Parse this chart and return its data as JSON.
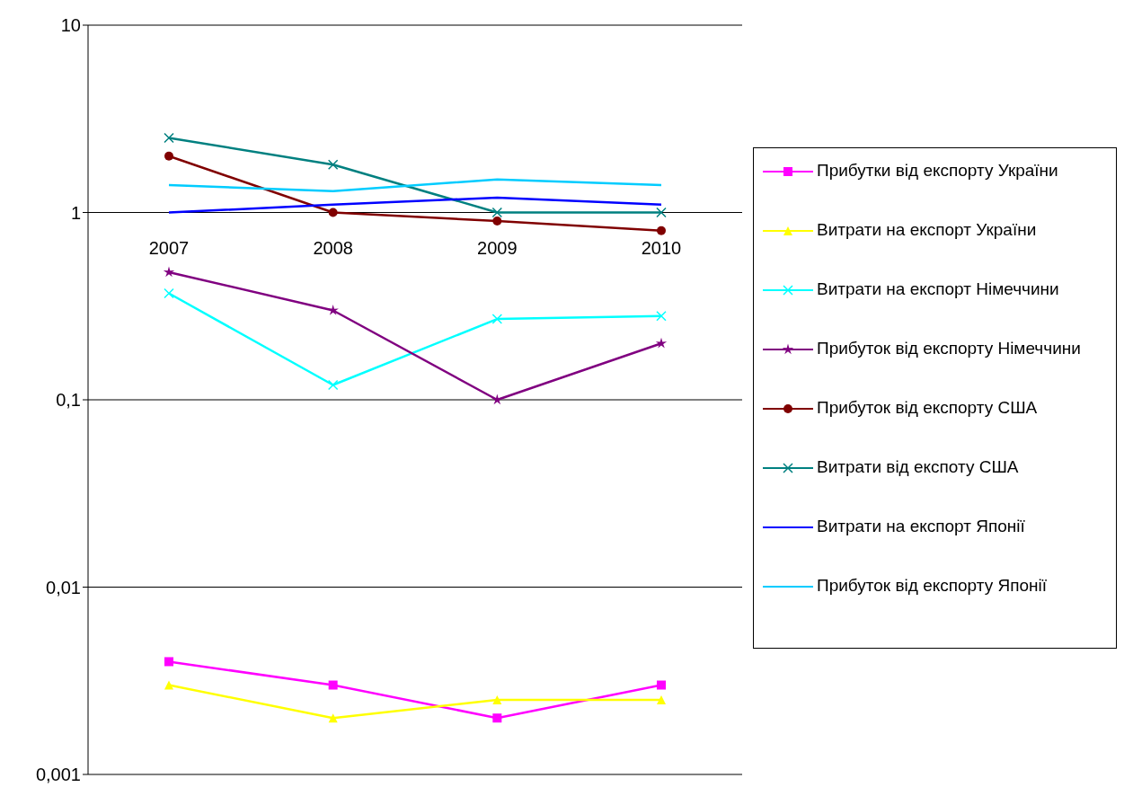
{
  "chart_data": {
    "type": "line",
    "categories": [
      "2007",
      "2008",
      "2009",
      "2010"
    ],
    "series": [
      {
        "name": "Прибутки від експорту України",
        "color": "#ff00ff",
        "marker": "square",
        "values": [
          0.004,
          0.003,
          0.002,
          0.003
        ]
      },
      {
        "name": "Витрати на експорт України",
        "color": "#ffff00",
        "marker": "triangle",
        "values": [
          0.003,
          0.002,
          0.0025,
          0.0025
        ]
      },
      {
        "name": "Витрати на експорт Німеччини",
        "color": "#00ffff",
        "marker": "cross",
        "values": [
          0.37,
          0.12,
          0.27,
          0.28
        ]
      },
      {
        "name": "Прибуток від експорту Німеччини",
        "color": "#800080",
        "marker": "star",
        "values": [
          0.48,
          0.3,
          0.1,
          0.2
        ]
      },
      {
        "name": "Прибуток від експорту США",
        "color": "#800000",
        "marker": "circle",
        "values": [
          2.0,
          1.0,
          0.9,
          0.8
        ]
      },
      {
        "name": "Витрати від експоту США",
        "color": "#008080",
        "marker": "cross",
        "values": [
          2.5,
          1.8,
          1.0,
          1.0
        ]
      },
      {
        "name": "Витрати на експорт Японії",
        "color": "#0000ff",
        "marker": "none",
        "values": [
          1.0,
          1.1,
          1.2,
          1.1
        ]
      },
      {
        "name": "Прибуток від експорту Японії",
        "color": "#00ccff",
        "marker": "none",
        "values": [
          1.4,
          1.3,
          1.5,
          1.4
        ]
      }
    ],
    "log": "y",
    "ylim": [
      0.001,
      10
    ],
    "yticks": [
      {
        "value": 0.001,
        "label": "0,001"
      },
      {
        "value": 0.01,
        "label": "0,01"
      },
      {
        "value": 0.1,
        "label": "0,1"
      },
      {
        "value": 1,
        "label": "1"
      },
      {
        "value": 10,
        "label": "10"
      }
    ],
    "grid": "y",
    "legend": "right"
  }
}
